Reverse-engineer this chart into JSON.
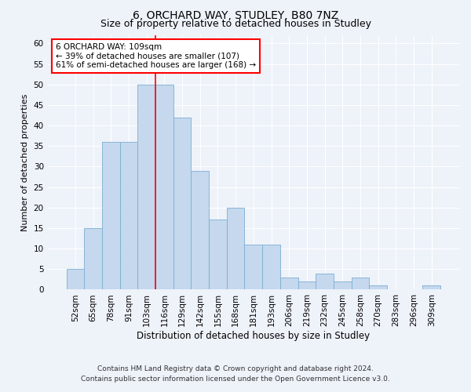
{
  "title1": "6, ORCHARD WAY, STUDLEY, B80 7NZ",
  "title2": "Size of property relative to detached houses in Studley",
  "xlabel": "Distribution of detached houses by size in Studley",
  "ylabel": "Number of detached properties",
  "categories": [
    "52sqm",
    "65sqm",
    "78sqm",
    "91sqm",
    "103sqm",
    "116sqm",
    "129sqm",
    "142sqm",
    "155sqm",
    "168sqm",
    "181sqm",
    "193sqm",
    "206sqm",
    "219sqm",
    "232sqm",
    "245sqm",
    "258sqm",
    "270sqm",
    "283sqm",
    "296sqm",
    "309sqm"
  ],
  "values": [
    5,
    15,
    36,
    36,
    50,
    50,
    42,
    29,
    17,
    20,
    11,
    11,
    3,
    2,
    4,
    2,
    3,
    1,
    0,
    0,
    1
  ],
  "bar_color": "#c5d8ed",
  "bar_edge_color": "#7bafd4",
  "vline_index": 4.5,
  "annotation_text": "6 ORCHARD WAY: 109sqm\n← 39% of detached houses are smaller (107)\n61% of semi-detached houses are larger (168) →",
  "annotation_box_color": "white",
  "annotation_box_edge_color": "red",
  "vline_color": "red",
  "ylim": [
    0,
    62
  ],
  "yticks": [
    0,
    5,
    10,
    15,
    20,
    25,
    30,
    35,
    40,
    45,
    50,
    55,
    60
  ],
  "footnote1": "Contains HM Land Registry data © Crown copyright and database right 2024.",
  "footnote2": "Contains public sector information licensed under the Open Government Licence v3.0.",
  "bg_color": "#eef2f9",
  "grid_color": "white",
  "title1_fontsize": 10,
  "title2_fontsize": 9,
  "xlabel_fontsize": 8.5,
  "ylabel_fontsize": 8,
  "tick_fontsize": 7.5,
  "footnote_fontsize": 6.5,
  "annot_fontsize": 7.5
}
